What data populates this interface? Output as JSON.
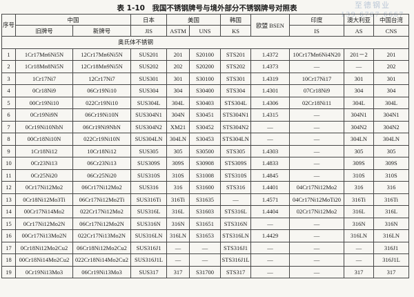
{
  "title": "表 1-10　我国不锈钢牌号与境外部分不锈钢牌号对照表",
  "watermark": {
    "name": "至德钢业",
    "phone": "139 6707 6667"
  },
  "table": {
    "header_row1": [
      "序号",
      "中国",
      "日本",
      "美国",
      "韩国",
      "欧盟 BSEN",
      "印度",
      "澳大利亚",
      "中国台湾"
    ],
    "header_row2": [
      "旧牌号",
      "新牌号",
      "JIS",
      "ASTM",
      "UNS",
      "KS",
      "IS",
      "AS",
      "CNS"
    ],
    "section": "奥氏体不锈钢",
    "rows": [
      [
        "1",
        "1Cr17Mn6Ni5N",
        "12Cr17Mn6Ni5N",
        "SUS201",
        "201",
        "S20100",
        "STS201",
        "1.4372",
        "10Cr17Mn6Ni4N20",
        "201－2",
        "201"
      ],
      [
        "2",
        "1Cr18Mn8Ni5N",
        "12Cr18Mn9Ni5N",
        "SUS202",
        "202",
        "S20200",
        "STS202",
        "1.4373",
        "—",
        "—",
        "202"
      ],
      [
        "3",
        "1Cr17Ni7",
        "12Cr17Ni7",
        "SUS301",
        "301",
        "S30100",
        "STS301",
        "1.4319",
        "10Cr17Ni17",
        "301",
        "301"
      ],
      [
        "4",
        "0Cr18Ni9",
        "06Cr19Ni10",
        "SUS304",
        "304",
        "S30400",
        "STS304",
        "1.4301",
        "07Cr18Ni9",
        "304",
        "304"
      ],
      [
        "5",
        "00Cr19Ni10",
        "022Cr19Ni10",
        "SUS304L",
        "304L",
        "S30403",
        "STS304L",
        "1.4306",
        "02Cr18Ni11",
        "304L",
        "304L"
      ],
      [
        "6",
        "0Cr19Ni9N",
        "06Cr19Ni10N",
        "SUS304N1",
        "304N",
        "S30451",
        "STS304N1",
        "1.4315",
        "—",
        "304N1",
        "304N1"
      ],
      [
        "7",
        "0Cr19Ni10NbN",
        "06Cr19Ni9NbN",
        "SUS304N2",
        "XM21",
        "S30452",
        "STS304N2",
        "—",
        "—",
        "304N2",
        "304N2"
      ],
      [
        "8",
        "00Cr18Ni10N",
        "022Cr19Ni10N",
        "SUS304LN",
        "304LN",
        "S30453",
        "STS304LN",
        "—",
        "—",
        "304LN",
        "304LN"
      ],
      [
        "9",
        "1Cr18Ni12",
        "10Cr18Ni12",
        "SUS305",
        "305",
        "S30500",
        "STS305",
        "1.4303",
        "—",
        "305",
        "305"
      ],
      [
        "10",
        "0Cr23Ni13",
        "06Cr23Ni13",
        "SUS309S",
        "309S",
        "S30908",
        "STS309S",
        "1.4833",
        "—",
        "309S",
        "309S"
      ],
      [
        "11",
        "0Cr25Ni20",
        "06Cr25Ni20",
        "SUS310S",
        "310S",
        "S31008",
        "STS310S",
        "1.4845",
        "—",
        "310S",
        "310S"
      ],
      [
        "12",
        "0Cr17Ni12Mo2",
        "06Cr17Ni12Mo2",
        "SUS316",
        "316",
        "S31600",
        "STS316",
        "1.4401",
        "04Cr17Ni12Mo2",
        "316",
        "316"
      ],
      [
        "13",
        "0Cr18Ni12Mo3Ti",
        "06Cr17Ni12Mo2Ti",
        "SUS316Ti",
        "316Ti",
        "S31635",
        "—",
        "1.4571",
        "04Cr17Ni12MoTi20",
        "316Ti",
        "316Ti"
      ],
      [
        "14",
        "00Cr17Ni14Mo2",
        "022Cr17Ni12Mo2",
        "SUS316L",
        "316L",
        "S31603",
        "STS316L",
        "1.4404",
        "02Cr17Ni12Mo2",
        "316L",
        "316L"
      ],
      [
        "15",
        "0Cr17Ni12Mo2N",
        "06Cr17Ni12Mo2N",
        "SUS316N",
        "316N",
        "S31651",
        "STS316N",
        "—",
        "—",
        "316N",
        "316N"
      ],
      [
        "16",
        "00Cr17Ni13Mo2N",
        "022Cr17Ni13Mo2N",
        "SUS316LN",
        "316LN",
        "S31653",
        "STS316LN",
        "1.4429",
        "—",
        "316LN",
        "316LN"
      ],
      [
        "17",
        "0Cr18Ni12Mo2Cu2",
        "06Cr18Ni12Mo2Cu2",
        "SUS316J1",
        "—",
        "—",
        "STS316J1",
        "—",
        "—",
        "—",
        "316J1"
      ],
      [
        "18",
        "00Cr18Ni14Mo2Cu2",
        "022Cr18Ni14Mo2Cu2",
        "SUS316J1L",
        "—",
        "—",
        "STS316J1L",
        "—",
        "—",
        "—",
        "316J1L"
      ],
      [
        "19",
        "0Cr19Ni13Mo3",
        "06Cr19Ni13Mo3",
        "SUS317",
        "317",
        "S31700",
        "STS317",
        "—",
        "—",
        "317",
        "317"
      ]
    ]
  }
}
